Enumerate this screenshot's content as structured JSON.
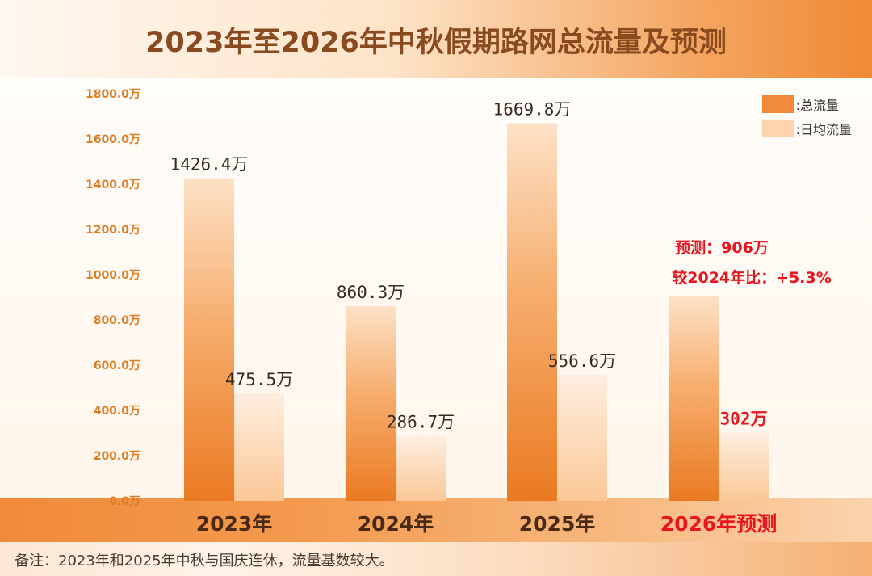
{
  "title": "2023年至2026年中秋假期路网总流量及预测",
  "legend": {
    "total_label": ":总流量",
    "daily_label": ":日均流量"
  },
  "annotation": {
    "line1": "预测：906万",
    "line2": "较2024年比：+5.3%"
  },
  "note": "备注：2023年和2025年中秋与国庆连休，流量基数较大。",
  "colors": {
    "total_bar": "#f08a3a",
    "daily_bar": "#fcd3ad",
    "forecast_text": "#e8141e",
    "axis_text": "#e07b1f"
  },
  "chart_data": {
    "type": "bar",
    "title": "2023年至2026年中秋假期路网总流量及预测",
    "categories": [
      "2023年",
      "2024年",
      "2025年",
      "2026年预测"
    ],
    "y_ticks": [
      "0.0万",
      "200.0万",
      "400.0万",
      "600.0万",
      "800.0万",
      "1000.0万",
      "1200.0万",
      "1400.0万",
      "1600.0万",
      "1800.0万"
    ],
    "ylim": [
      0,
      1800
    ],
    "grid": false,
    "legend_position": "top-right",
    "series": [
      {
        "name": ":总流量",
        "values": [
          1426.4,
          860.3,
          1669.8,
          906
        ],
        "labels": [
          "1426.4万",
          "860.3万",
          "1669.8万",
          ""
        ]
      },
      {
        "name": ":日均流量",
        "values": [
          475.5,
          286.7,
          556.6,
          302
        ],
        "labels": [
          "475.5万",
          "286.7万",
          "556.6万",
          "302万"
        ]
      }
    ]
  }
}
